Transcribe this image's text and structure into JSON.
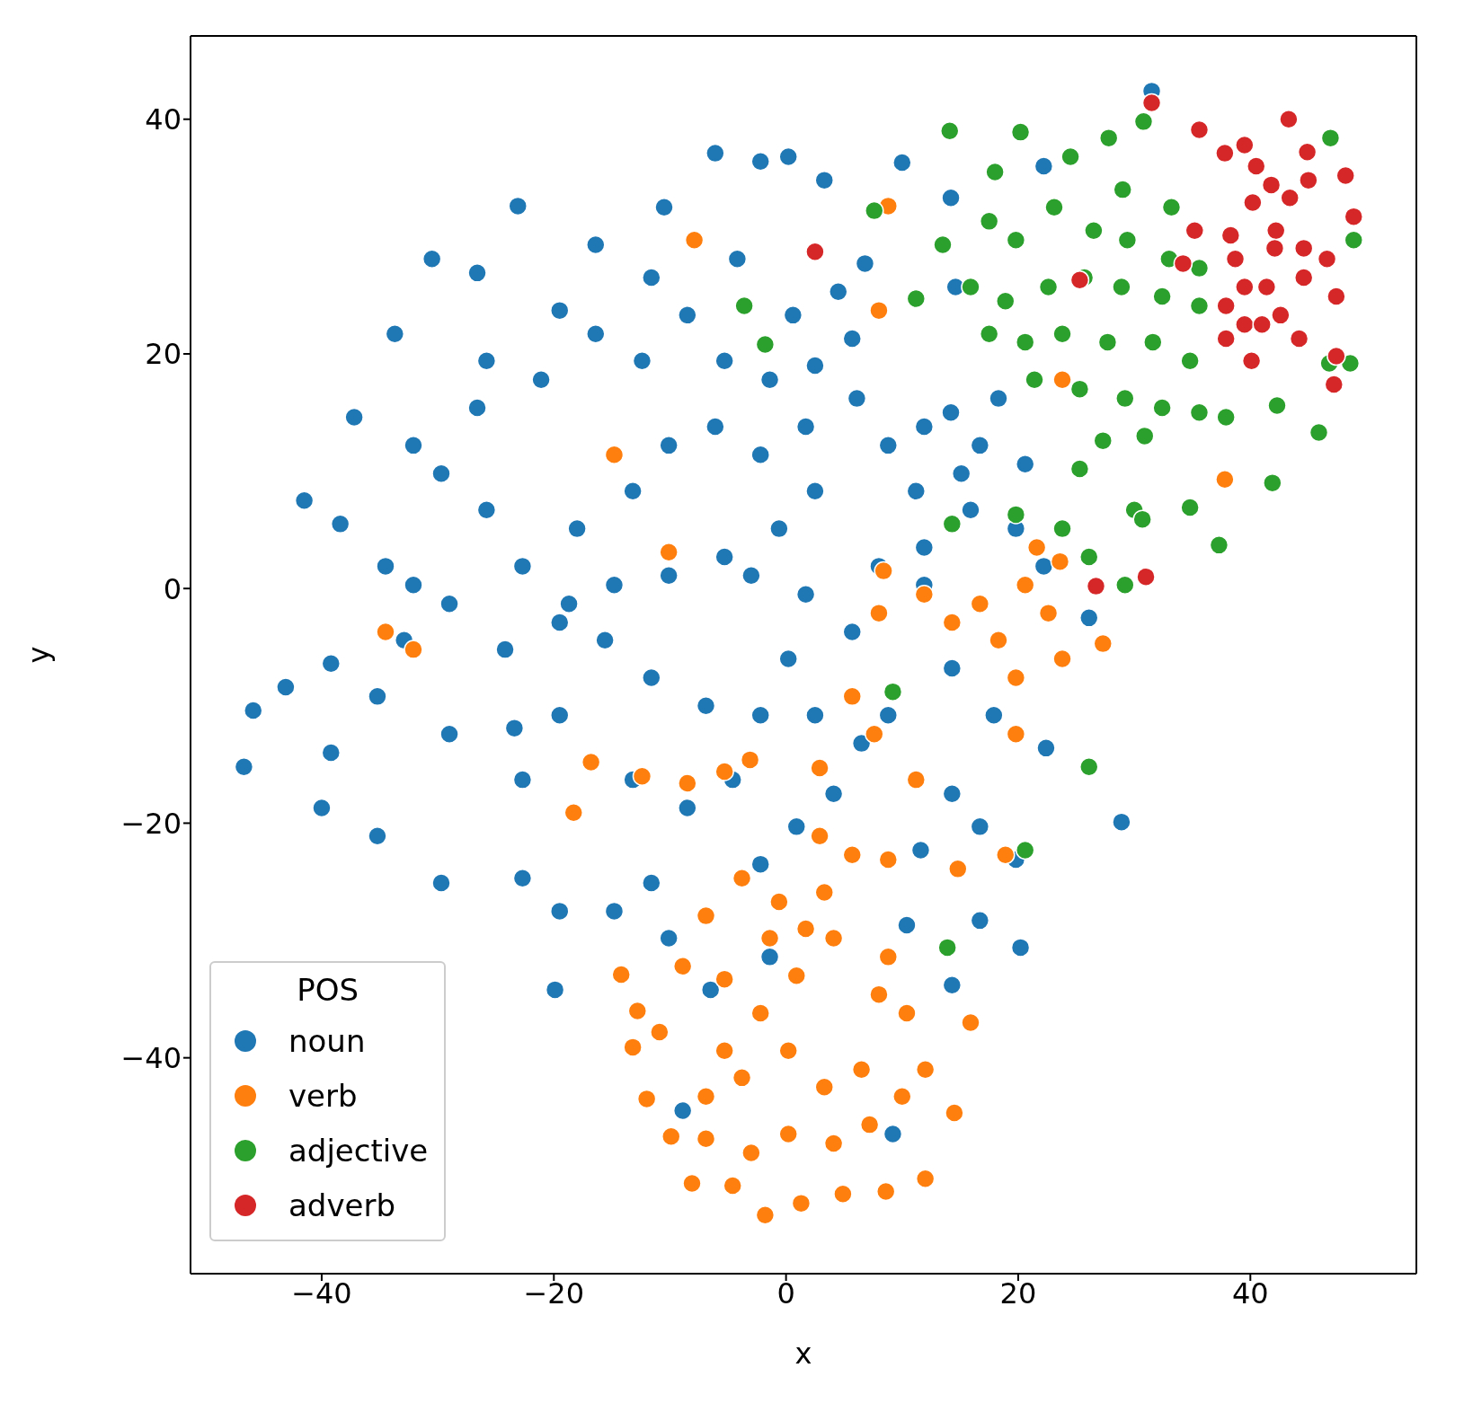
{
  "chart_data": {
    "type": "scatter",
    "xlabel": "x",
    "ylabel": "y",
    "legend_title": "POS",
    "legend": "bottom left",
    "marker": "circle",
    "xlim": [
      -51.3,
      54.3
    ],
    "ylim": [
      -58.4,
      47.1
    ],
    "xticks": [
      -40,
      -20,
      0,
      20,
      40
    ],
    "yticks": [
      -40,
      -20,
      0,
      20,
      40
    ],
    "series": [
      {
        "name": "noun",
        "color": "#1f77b4",
        "x": [
          -46.7,
          -45.9,
          -41.5,
          -38.4,
          -39.2,
          -40,
          -35.2,
          -29.7,
          -37.2,
          -33.7,
          -30.5,
          -26.6,
          -23.1,
          -16.4,
          -10.5,
          -6.1,
          -2.2,
          0.2,
          3.3,
          10,
          6.8,
          4.5,
          0.6,
          -4.2,
          -11.6,
          -19.5,
          -25.8,
          -32.1,
          -34.5,
          -32.9,
          -29,
          -22.7,
          -22.7,
          -19.9,
          -19.5,
          -14.8,
          -11.6,
          -10.1,
          -6.5,
          -8.9,
          9.2,
          14.3,
          16.7,
          20.2,
          19.8,
          28.9,
          22.4,
          17.9,
          14.3,
          14.3,
          11.6,
          10.4,
          4.1,
          0.9,
          -2.2,
          -1.4,
          -4.6,
          -8.5,
          -13.2,
          -16.4,
          -19.5,
          -23.4,
          -24.2,
          -19.5,
          -15.6,
          -11.6,
          -6.9,
          -2.2,
          0.2,
          2.5,
          6.5,
          8.8,
          5.7,
          8,
          11.9,
          15.9,
          19.8,
          22.2,
          26.1,
          20.6,
          16.7,
          11.9,
          8.8,
          15.1,
          11.2,
          11.9,
          18.3,
          22.2,
          31.5,
          30.7,
          14.2,
          14.6,
          14.2,
          6.1,
          5.7,
          2.5,
          -1.4,
          -5.3,
          -8.5,
          -12.4,
          -16.4,
          -21.1,
          -26.6,
          -29.7,
          -25.8,
          -22.7,
          -18,
          -13.2,
          -10.1,
          -6.1,
          -2.2,
          1.7,
          2.5,
          -0.6,
          -5.3,
          -10.1,
          -14.8,
          -18.7,
          -29,
          -32.1,
          -35.2,
          -43.1,
          -39.2,
          -3,
          1.7,
          16.7
        ],
        "values": [
          -15.2,
          -10.4,
          7.5,
          5.5,
          -6.4,
          -18.7,
          -21.1,
          -25.1,
          14.6,
          21.7,
          28.1,
          26.9,
          32.6,
          29.3,
          32.5,
          37.1,
          36.4,
          36.8,
          34.8,
          36.3,
          27.7,
          25.3,
          23.3,
          28.1,
          26.5,
          23.7,
          19.4,
          12.2,
          1.9,
          -4.4,
          -12.4,
          -16.3,
          -24.7,
          -34.2,
          -27.5,
          -27.5,
          -25.1,
          -29.8,
          -34.2,
          -44.5,
          -46.5,
          -33.8,
          -28.3,
          -30.6,
          -23.1,
          -19.9,
          -13.6,
          -10.8,
          -6.8,
          -17.5,
          -22.3,
          -28.7,
          -17.5,
          -20.3,
          -23.5,
          -31.4,
          -16.3,
          -18.7,
          -16.3,
          null,
          -10.8,
          -11.9,
          -5.2,
          -2.9,
          -4.4,
          -7.6,
          -10,
          -10.8,
          -6,
          -10.8,
          -13.2,
          -10.8,
          -3.7,
          1.9,
          3.5,
          6.7,
          5.1,
          1.9,
          -2.5,
          10.6,
          12.2,
          13.8,
          12.2,
          9.8,
          8.3,
          0.3,
          16.2,
          36,
          42.4,
          null,
          33.3,
          25.7,
          15,
          16.2,
          21.3,
          19,
          17.8,
          19.4,
          23.3,
          19.4,
          21.7,
          17.8,
          15.4,
          9.8,
          6.7,
          1.9,
          5.1,
          8.3,
          12.2,
          13.8,
          11.4,
          13.8,
          8.3,
          5.1,
          2.7,
          1.1,
          0.3,
          -1.3,
          -1.3,
          0.3,
          -9.2,
          -8.4,
          -14,
          1.1,
          -0.5,
          -20.3
        ]
      },
      {
        "name": "verb",
        "color": "#ff7f0e",
        "x": [
          -34.5,
          -32.1,
          -14.8,
          -10.1,
          -7.9,
          8.8,
          8,
          37.8,
          27.3,
          19.8,
          18.9,
          14.8,
          11.2,
          8.8,
          15.9,
          14.5,
          12,
          8.6,
          4.9,
          1.3,
          -1.8,
          -4.6,
          -8.1,
          -9.9,
          -12,
          -13.2,
          -14.2,
          -12.8,
          -10.9,
          -8.9,
          -6.9,
          -3.8,
          -0.6,
          3.3,
          5.7,
          4.1,
          0.9,
          -2.2,
          -5.3,
          -6.9,
          -3.8,
          0.2,
          3.3,
          6.5,
          7.2,
          4.1,
          0.2,
          -3,
          -6.9,
          -5.3,
          -1.4,
          1.7,
          8,
          10.4,
          12,
          10,
          -16.8,
          -12.4,
          -18.3,
          -8.5,
          -5.3,
          -3.1,
          2.9,
          2.9,
          5.7,
          7.6,
          8.8,
          21.6,
          20.6,
          22.6,
          18.3,
          23.8,
          19.8,
          16.7,
          14.3,
          11.9,
          8.4,
          8,
          23.6,
          23.8
        ],
        "values": [
          -3.7,
          -5.2,
          11.4,
          3.1,
          29.7,
          32.6,
          23.7,
          9.3,
          -4.7,
          -12.4,
          -22.7,
          -23.9,
          -16.3,
          -31.4,
          -37,
          -44.7,
          -50.3,
          -51.4,
          -51.6,
          -52.4,
          -53.4,
          -50.9,
          -50.7,
          -46.7,
          -43.5,
          -39.1,
          -32.9,
          -36,
          -37.8,
          -32.2,
          -27.9,
          -24.7,
          -26.7,
          -25.9,
          -22.7,
          -29.8,
          -33,
          -36.2,
          -39.4,
          -43.3,
          -41.7,
          -39.4,
          -42.5,
          -41,
          -45.7,
          -47.3,
          -46.5,
          -48.1,
          -46.9,
          -33.3,
          -29.8,
          -29,
          -34.6,
          -36.2,
          -41,
          -43.3,
          -14.8,
          -16,
          -19.1,
          -16.6,
          -15.6,
          -14.6,
          -15.3,
          -21.1,
          -9.2,
          -12.4,
          -23.1,
          3.5,
          0.3,
          -2.1,
          -4.4,
          -6,
          -7.6,
          -1.3,
          -2.9,
          -0.5,
          1.5,
          -2.1,
          2.3,
          17.8
        ]
      },
      {
        "name": "adjective",
        "color": "#2ca02c",
        "x": [
          14.1,
          20.2,
          24.5,
          27.8,
          30.8,
          29,
          29.4,
          33.2,
          33,
          35.6,
          18,
          17.5,
          19.8,
          23.1,
          26.5,
          13.5,
          15.9,
          18.9,
          22.6,
          25.7,
          28.9,
          32.4,
          35.6,
          17.5,
          20.6,
          23.8,
          27.7,
          31.6,
          34.8,
          21.4,
          25.3,
          29.2,
          32.4,
          35.6,
          27.3,
          30.9,
          37.9,
          42.3,
          45.9,
          46.8,
          48.6,
          41.9,
          37.3,
          34.8,
          30,
          30.7,
          25.3,
          23.8,
          26.1,
          29.2,
          19.8,
          14.3,
          26.1,
          20.6,
          13.9,
          9.2,
          -1.8,
          -3.6,
          7.6,
          11.2,
          48.9,
          46.9
        ],
        "values": [
          39,
          38.9,
          36.8,
          38.4,
          39.8,
          34,
          29.7,
          32.5,
          28.1,
          27.3,
          35.5,
          31.3,
          29.7,
          32.5,
          30.5,
          29.3,
          25.7,
          24.5,
          25.7,
          26.5,
          25.7,
          24.9,
          24.1,
          21.7,
          21,
          21.7,
          21,
          21,
          19.4,
          17.8,
          17,
          16.2,
          15.4,
          15,
          12.6,
          13,
          14.6,
          15.6,
          13.3,
          19.2,
          19.2,
          9,
          3.7,
          6.9,
          6.7,
          5.9,
          10.2,
          5.1,
          2.7,
          0.3,
          6.3,
          5.5,
          -15.2,
          -22.3,
          -30.6,
          -8.8,
          20.8,
          24.1,
          32.2,
          24.7,
          29.7,
          38.4
        ]
      },
      {
        "name": "adverb",
        "color": "#d62728",
        "x": [
          31.5,
          35.6,
          43.3,
          37.8,
          39.5,
          44.9,
          48.2,
          48.9,
          46.6,
          47.4,
          47.4,
          47.2,
          44.2,
          40.1,
          37.9,
          37.9,
          38.7,
          38.3,
          42.2,
          43.4,
          40.2,
          41.8,
          45,
          40.5,
          42.1,
          44.6,
          41.4,
          44.6,
          39.5,
          41,
          42.6,
          39.5,
          35.2,
          34.2,
          25.3,
          31,
          26.7,
          2.5
        ],
        "values": [
          41.4,
          39.1,
          40,
          37.1,
          37.8,
          37.2,
          35.2,
          31.7,
          28.1,
          24.9,
          19.8,
          17.4,
          21.3,
          19.4,
          21.3,
          24.1,
          28.1,
          30.1,
          30.5,
          33.3,
          32.9,
          34.4,
          34.8,
          36,
          29,
          29,
          25.7,
          26.5,
          22.5,
          22.5,
          23.3,
          25.7,
          30.5,
          27.7,
          26.3,
          1,
          0.2,
          28.7
        ]
      }
    ]
  }
}
